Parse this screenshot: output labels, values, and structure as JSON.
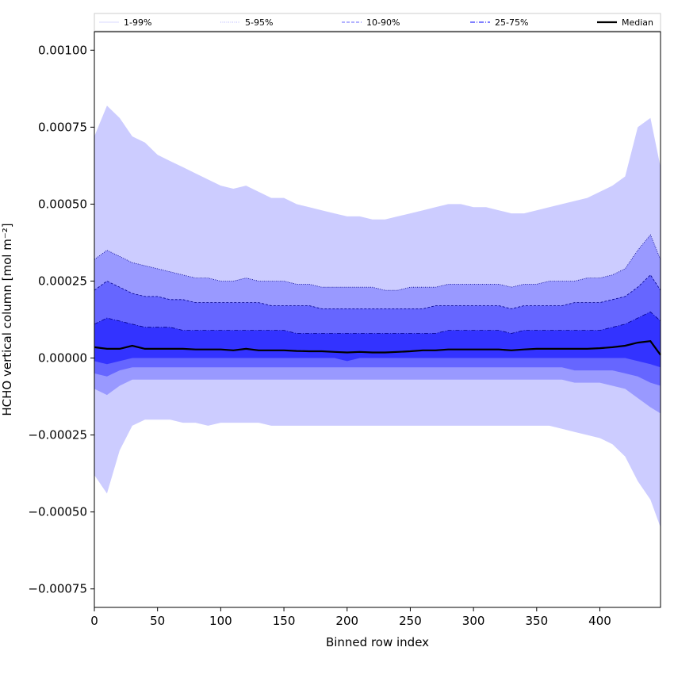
{
  "chart_data": {
    "type": "area",
    "title": "",
    "xlabel": "Binned row index",
    "ylabel": "HCHO vertical column [mol m⁻²]",
    "xlim": [
      0,
      448
    ],
    "ylim": [
      -0.00081,
      0.00106
    ],
    "x_ticks": [
      0,
      50,
      100,
      150,
      200,
      250,
      300,
      350,
      400
    ],
    "x_tick_labels": [
      "0",
      "50",
      "100",
      "150",
      "200",
      "250",
      "300",
      "350",
      "400"
    ],
    "y_ticks": [
      -0.00075,
      -0.0005,
      -0.00025,
      0.0,
      0.00025,
      0.0005,
      0.00075,
      0.001
    ],
    "y_tick_labels": [
      "−0.00075",
      "−0.00050",
      "−0.00025",
      "0.00000",
      "0.00025",
      "0.00050",
      "0.00075",
      "0.00100"
    ],
    "grid": false,
    "legend_position": "top, single row spanning plot width",
    "legend": [
      {
        "label": "1-99%",
        "color": "#ccccff",
        "style": "solid-thin"
      },
      {
        "label": "5-95%",
        "color": "#9999ff",
        "style": "dotted"
      },
      {
        "label": "10-90%",
        "color": "#6666ff",
        "style": "dashed"
      },
      {
        "label": "25-75%",
        "color": "#3333ff",
        "style": "dashdot"
      },
      {
        "label": "Median",
        "color": "#000000",
        "style": "solid-thick"
      }
    ],
    "x": [
      0,
      10,
      20,
      30,
      40,
      50,
      60,
      70,
      80,
      90,
      100,
      110,
      120,
      130,
      140,
      150,
      160,
      170,
      180,
      190,
      200,
      210,
      220,
      230,
      240,
      250,
      260,
      270,
      280,
      290,
      300,
      310,
      320,
      330,
      340,
      350,
      360,
      370,
      380,
      390,
      400,
      410,
      420,
      430,
      440,
      448
    ],
    "series": [
      {
        "name": "1-99%",
        "color": "#ccccff",
        "upper": [
          0.00072,
          0.00082,
          0.00078,
          0.00072,
          0.0007,
          0.00066,
          0.00064,
          0.00062,
          0.0006,
          0.00058,
          0.00056,
          0.00055,
          0.00056,
          0.00054,
          0.00052,
          0.00052,
          0.0005,
          0.00049,
          0.00048,
          0.00047,
          0.00046,
          0.00046,
          0.00045,
          0.00045,
          0.00046,
          0.00047,
          0.00048,
          0.00049,
          0.0005,
          0.0005,
          0.00049,
          0.00049,
          0.00048,
          0.00047,
          0.00047,
          0.00048,
          0.00049,
          0.0005,
          0.00051,
          0.00052,
          0.00054,
          0.00056,
          0.00059,
          0.00075,
          0.00078,
          0.00062
        ],
        "lower": [
          -0.00038,
          -0.00044,
          -0.0003,
          -0.00022,
          -0.0002,
          -0.0002,
          -0.0002,
          -0.00021,
          -0.00021,
          -0.00022,
          -0.00021,
          -0.00021,
          -0.00021,
          -0.00021,
          -0.00022,
          -0.00022,
          -0.00022,
          -0.00022,
          -0.00022,
          -0.00022,
          -0.00022,
          -0.00022,
          -0.00022,
          -0.00022,
          -0.00022,
          -0.00022,
          -0.00022,
          -0.00022,
          -0.00022,
          -0.00022,
          -0.00022,
          -0.00022,
          -0.00022,
          -0.00022,
          -0.00022,
          -0.00022,
          -0.00022,
          -0.00023,
          -0.00024,
          -0.00025,
          -0.00026,
          -0.00028,
          -0.00032,
          -0.0004,
          -0.00046,
          -0.00055
        ]
      },
      {
        "name": "5-95%",
        "color": "#9999ff",
        "upper": [
          0.00032,
          0.00035,
          0.00033,
          0.00031,
          0.0003,
          0.00029,
          0.00028,
          0.00027,
          0.00026,
          0.00026,
          0.00025,
          0.00025,
          0.00026,
          0.00025,
          0.00025,
          0.00025,
          0.00024,
          0.00024,
          0.00023,
          0.00023,
          0.00023,
          0.00023,
          0.00023,
          0.00022,
          0.00022,
          0.00023,
          0.00023,
          0.00023,
          0.00024,
          0.00024,
          0.00024,
          0.00024,
          0.00024,
          0.00023,
          0.00024,
          0.00024,
          0.00025,
          0.00025,
          0.00025,
          0.00026,
          0.00026,
          0.00027,
          0.00029,
          0.00035,
          0.0004,
          0.00032
        ],
        "lower": [
          -0.0001,
          -0.00012,
          -9e-05,
          -7e-05,
          -7e-05,
          -7e-05,
          -7e-05,
          -7e-05,
          -7e-05,
          -7e-05,
          -7e-05,
          -7e-05,
          -7e-05,
          -7e-05,
          -7e-05,
          -7e-05,
          -7e-05,
          -7e-05,
          -7e-05,
          -7e-05,
          -7e-05,
          -7e-05,
          -7e-05,
          -7e-05,
          -7e-05,
          -7e-05,
          -7e-05,
          -7e-05,
          -7e-05,
          -7e-05,
          -7e-05,
          -7e-05,
          -7e-05,
          -7e-05,
          -7e-05,
          -7e-05,
          -7e-05,
          -7e-05,
          -8e-05,
          -8e-05,
          -8e-05,
          -9e-05,
          -0.0001,
          -0.00013,
          -0.00016,
          -0.00018
        ]
      },
      {
        "name": "10-90%",
        "color": "#6666ff",
        "upper": [
          0.00022,
          0.00025,
          0.00023,
          0.00021,
          0.0002,
          0.0002,
          0.00019,
          0.00019,
          0.00018,
          0.00018,
          0.00018,
          0.00018,
          0.00018,
          0.00018,
          0.00017,
          0.00017,
          0.00017,
          0.00017,
          0.00016,
          0.00016,
          0.00016,
          0.00016,
          0.00016,
          0.00016,
          0.00016,
          0.00016,
          0.00016,
          0.00017,
          0.00017,
          0.00017,
          0.00017,
          0.00017,
          0.00017,
          0.00016,
          0.00017,
          0.00017,
          0.00017,
          0.00017,
          0.00018,
          0.00018,
          0.00018,
          0.00019,
          0.0002,
          0.00023,
          0.00027,
          0.00022
        ],
        "lower": [
          -5e-05,
          -6e-05,
          -4e-05,
          -3e-05,
          -3e-05,
          -3e-05,
          -3e-05,
          -3e-05,
          -3e-05,
          -3e-05,
          -3e-05,
          -3e-05,
          -3e-05,
          -3e-05,
          -3e-05,
          -3e-05,
          -3e-05,
          -3e-05,
          -3e-05,
          -3e-05,
          -3e-05,
          -3e-05,
          -3e-05,
          -3e-05,
          -3e-05,
          -3e-05,
          -3e-05,
          -3e-05,
          -3e-05,
          -3e-05,
          -3e-05,
          -3e-05,
          -3e-05,
          -3e-05,
          -3e-05,
          -3e-05,
          -3e-05,
          -3e-05,
          -4e-05,
          -4e-05,
          -4e-05,
          -4e-05,
          -5e-05,
          -6e-05,
          -8e-05,
          -9e-05
        ]
      },
      {
        "name": "25-75%",
        "color": "#3333ff",
        "upper": [
          0.00011,
          0.00013,
          0.00012,
          0.00011,
          0.0001,
          0.0001,
          0.0001,
          9e-05,
          9e-05,
          9e-05,
          9e-05,
          9e-05,
          9e-05,
          9e-05,
          9e-05,
          9e-05,
          8e-05,
          8e-05,
          8e-05,
          8e-05,
          8e-05,
          8e-05,
          8e-05,
          8e-05,
          8e-05,
          8e-05,
          8e-05,
          8e-05,
          9e-05,
          9e-05,
          9e-05,
          9e-05,
          9e-05,
          8e-05,
          9e-05,
          9e-05,
          9e-05,
          9e-05,
          9e-05,
          9e-05,
          9e-05,
          0.0001,
          0.00011,
          0.00013,
          0.00015,
          0.00012
        ],
        "lower": [
          -1e-05,
          -2e-05,
          -1e-05,
          0.0,
          0.0,
          0.0,
          0.0,
          0.0,
          0.0,
          0.0,
          0.0,
          0.0,
          0.0,
          0.0,
          0.0,
          0.0,
          0.0,
          0.0,
          0.0,
          0.0,
          -1e-05,
          0.0,
          0.0,
          0.0,
          0.0,
          0.0,
          0.0,
          0.0,
          0.0,
          0.0,
          0.0,
          0.0,
          0.0,
          0.0,
          0.0,
          0.0,
          0.0,
          0.0,
          0.0,
          0.0,
          0.0,
          0.0,
          0.0,
          -1e-05,
          -2e-05,
          -3e-05
        ]
      },
      {
        "name": "Median",
        "color": "#000000",
        "values": [
          3.5e-05,
          3e-05,
          3e-05,
          4e-05,
          3e-05,
          3e-05,
          3e-05,
          3e-05,
          2.8e-05,
          2.8e-05,
          2.8e-05,
          2.5e-05,
          3e-05,
          2.5e-05,
          2.5e-05,
          2.5e-05,
          2.3e-05,
          2.2e-05,
          2.2e-05,
          2e-05,
          1.8e-05,
          2e-05,
          1.8e-05,
          1.8e-05,
          2e-05,
          2.2e-05,
          2.5e-05,
          2.5e-05,
          2.8e-05,
          2.8e-05,
          2.8e-05,
          2.8e-05,
          2.8e-05,
          2.5e-05,
          2.8e-05,
          3e-05,
          3e-05,
          3e-05,
          3e-05,
          3e-05,
          3.2e-05,
          3.5e-05,
          4e-05,
          5e-05,
          5.5e-05,
          1e-05
        ]
      }
    ]
  }
}
